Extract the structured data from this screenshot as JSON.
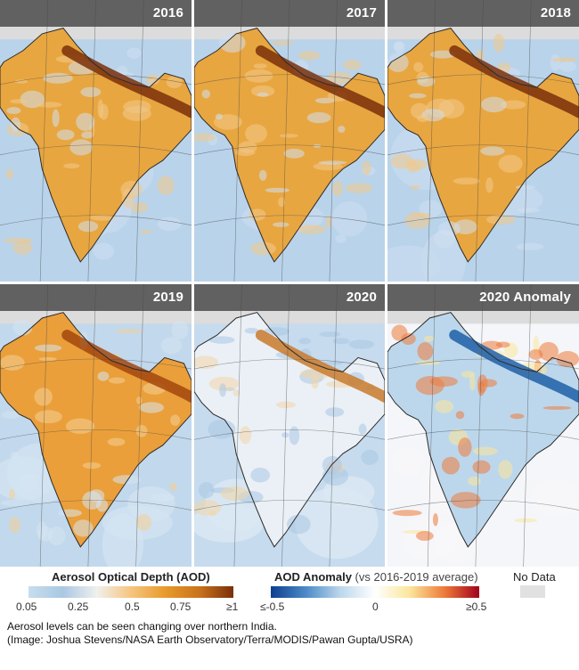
{
  "panels": [
    {
      "title": "2016",
      "style": "orange-heavy"
    },
    {
      "title": "2017",
      "style": "orange-heavy"
    },
    {
      "title": "2018",
      "style": "orange-heavy"
    },
    {
      "title": "2019",
      "style": "orange-medium"
    },
    {
      "title": "2020",
      "style": "blue-light"
    },
    {
      "title": "2020 Anomaly",
      "style": "anomaly"
    }
  ],
  "legend": {
    "aod": {
      "title": "Aerosol Optical Depth (AOD)",
      "ticks": [
        "0.05",
        "0.25",
        "0.5",
        "0.75",
        "≥1"
      ],
      "colors": [
        "#c8ddef",
        "#a9c8e2",
        "#f0f0ee",
        "#f6c57f",
        "#e89a2c",
        "#c9731c",
        "#7a2f0a"
      ]
    },
    "anomaly": {
      "title": "AOD Anomaly",
      "subtitle": "(vs 2016-2019 average)",
      "ticks": [
        "≤-0.5",
        "0",
        "≥0.5"
      ],
      "colors": [
        "#0c3f8f",
        "#4b8ac7",
        "#bcd7ec",
        "#ffffff",
        "#fbe69b",
        "#ee7a3a",
        "#a3001c"
      ]
    },
    "nodata": {
      "label": "No Data",
      "color": "#e1e1e1"
    }
  },
  "caption": {
    "line1": "Aerosol levels can be seen changing over northern India.",
    "line2": "(Image: Joshua Stevens/NASA Earth Observatory/Terra/MODIS/Pawan Gupta/USRA)"
  }
}
